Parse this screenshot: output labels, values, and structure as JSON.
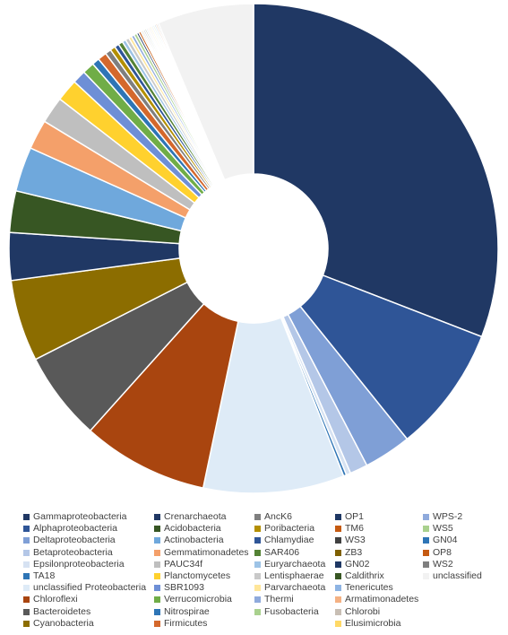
{
  "chart_data": {
    "type": "pie",
    "donut": true,
    "title": "",
    "legend_position": "bottom",
    "series": [
      {
        "name": "Gammaproteobacteria",
        "value": 31.5,
        "color": "#203864"
      },
      {
        "name": "Alphaproteobacteria",
        "value": 8.5,
        "color": "#2F5597"
      },
      {
        "name": "Deltaproteobacteria",
        "value": 3.2,
        "color": "#7F9FD6"
      },
      {
        "name": "Betaproteobacteria",
        "value": 1.2,
        "color": "#B4C7E7"
      },
      {
        "name": "Epsilonproteobacteria",
        "value": 0.3,
        "color": "#D6E2F2"
      },
      {
        "name": "TA18",
        "value": 0.2,
        "color": "#2E75B6"
      },
      {
        "name": "unclassified Proteobacteria",
        "value": 9.5,
        "color": "#DEEBF7"
      },
      {
        "name": "Chloroflexi",
        "value": 8.5,
        "color": "#A9450F"
      },
      {
        "name": "Bacteroidetes",
        "value": 6.0,
        "color": "#595959"
      },
      {
        "name": "Cyanobacteria",
        "value": 5.5,
        "color": "#8C6D00"
      },
      {
        "name": "Crenarchaeota",
        "value": 3.2,
        "color": "#203864"
      },
      {
        "name": "Acidobacteria",
        "value": 2.8,
        "color": "#375623"
      },
      {
        "name": "Actinobacteria",
        "value": 3.0,
        "color": "#6FA8DC"
      },
      {
        "name": "Gemmatimonadetes",
        "value": 2.0,
        "color": "#F4A06A"
      },
      {
        "name": "PAUC34f",
        "value": 1.8,
        "color": "#BFBFBF"
      },
      {
        "name": "Planctomycetes",
        "value": 1.5,
        "color": "#FFD12E"
      },
      {
        "name": "SBR1093",
        "value": 0.9,
        "color": "#6E8FD6"
      },
      {
        "name": "Verrucomicrobia",
        "value": 0.8,
        "color": "#70AD47"
      },
      {
        "name": "Nitrospirae",
        "value": 0.5,
        "color": "#2E75B6"
      },
      {
        "name": "Firmicutes",
        "value": 0.6,
        "color": "#D4682C"
      },
      {
        "name": "AncK6",
        "value": 0.4,
        "color": "#7F7F7F"
      },
      {
        "name": "Poribacteria",
        "value": 0.35,
        "color": "#B38F00"
      },
      {
        "name": "Chlamydiae",
        "value": 0.3,
        "color": "#2F5597"
      },
      {
        "name": "SAR406",
        "value": 0.3,
        "color": "#548235"
      },
      {
        "name": "Euryarchaeota",
        "value": 0.25,
        "color": "#9DC3E6"
      },
      {
        "name": "Lentisphaerae",
        "value": 0.25,
        "color": "#C9C9C9"
      },
      {
        "name": "Parvarchaeota",
        "value": 0.2,
        "color": "#FFE699"
      },
      {
        "name": "Thermi",
        "value": 0.2,
        "color": "#8FAADC"
      },
      {
        "name": "Fusobacteria",
        "value": 0.2,
        "color": "#A9D18E"
      },
      {
        "name": "OP1",
        "value": 0.15,
        "color": "#1F3864"
      },
      {
        "name": "TM6",
        "value": 0.15,
        "color": "#C55A11"
      },
      {
        "name": "WS3",
        "value": 0.1,
        "color": "#404040"
      },
      {
        "name": "ZB3",
        "value": 0.1,
        "color": "#7F6000"
      },
      {
        "name": "GN02",
        "value": 0.1,
        "color": "#1F3864"
      },
      {
        "name": "Caldithrix",
        "value": 0.1,
        "color": "#375623"
      },
      {
        "name": "Tenericutes",
        "value": 0.1,
        "color": "#8EB4E3"
      },
      {
        "name": "Armatimonadetes",
        "value": 0.1,
        "color": "#F4B183"
      },
      {
        "name": "Chlorobi",
        "value": 0.1,
        "color": "#C8BEB4"
      },
      {
        "name": "Elusimicrobia",
        "value": 0.1,
        "color": "#FFD966"
      },
      {
        "name": "WPS-2",
        "value": 0.1,
        "color": "#8FAADC"
      },
      {
        "name": "WS5",
        "value": 0.1,
        "color": "#A9D18E"
      },
      {
        "name": "GN04",
        "value": 0.1,
        "color": "#2E75B6"
      },
      {
        "name": "OP8",
        "value": 0.1,
        "color": "#C55A11"
      },
      {
        "name": "WS2",
        "value": 0.1,
        "color": "#7F7F7F"
      },
      {
        "name": "unclassified",
        "value": 6.5,
        "color": "#F2F2F2"
      }
    ],
    "legend_columns": [
      [
        "Gammaproteobacteria",
        "Alphaproteobacteria",
        "Deltaproteobacteria",
        "Betaproteobacteria",
        "Epsilonproteobacteria",
        "TA18",
        "unclassified Proteobacteria",
        "Chloroflexi",
        "Bacteroidetes",
        "Cyanobacteria"
      ],
      [
        "Crenarchaeota",
        "Acidobacteria",
        "Actinobacteria",
        "Gemmatimonadetes",
        "PAUC34f",
        "Planctomycetes",
        "SBR1093",
        "Verrucomicrobia",
        "Nitrospirae",
        "Firmicutes"
      ],
      [
        "AncK6",
        "Poribacteria",
        "Chlamydiae",
        "SAR406",
        "Euryarchaeota",
        "Lentisphaerae",
        "Parvarchaeota",
        "Thermi",
        "Fusobacteria"
      ],
      [
        "OP1",
        "TM6",
        "WS3",
        "ZB3",
        "GN02",
        "Caldithrix",
        "Tenericutes",
        "Armatimonadetes",
        "Chlorobi",
        "Elusimicrobia"
      ],
      [
        "WPS-2",
        "WS5",
        "GN04",
        "OP8",
        "WS2",
        "unclassified"
      ]
    ]
  }
}
